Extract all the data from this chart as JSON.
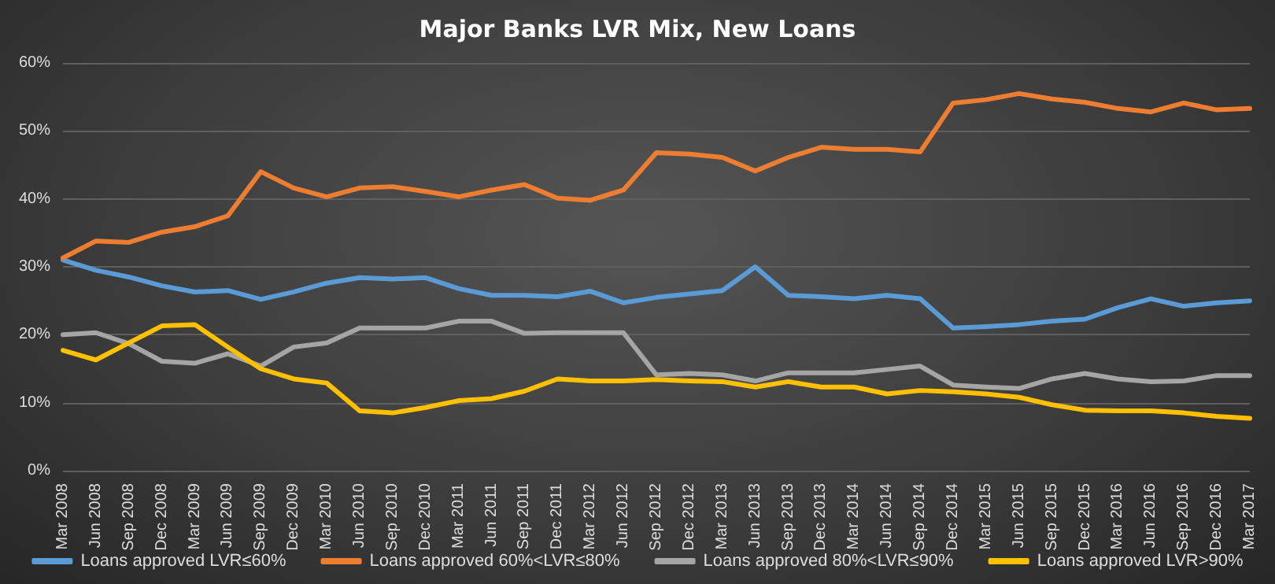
{
  "chart_data": {
    "type": "line",
    "title": "Major Banks LVR Mix, New Loans",
    "categories": [
      "Mar 2008",
      "Jun 2008",
      "Sep 2008",
      "Dec 2008",
      "Mar 2009",
      "Jun 2009",
      "Sep 2009",
      "Dec 2009",
      "Mar 2010",
      "Jun 2010",
      "Sep 2010",
      "Dec 2010",
      "Mar 2011",
      "Jun 2011",
      "Sep 2011",
      "Dec 2011",
      "Mar 2012",
      "Jun 2012",
      "Sep 2012",
      "Dec 2012",
      "Mar 2013",
      "Jun 2013",
      "Sep 2013",
      "Dec 2013",
      "Mar 2014",
      "Jun 2014",
      "Sep 2014",
      "Dec 2014",
      "Mar 2015",
      "Jun 2015",
      "Sep 2015",
      "Dec 2015",
      "Mar 2016",
      "Jun 2016",
      "Sep 2016",
      "Dec 2016",
      "Mar 2017"
    ],
    "series": [
      {
        "name": "Loans approved LVR≤60%",
        "color": "#5b9bd5",
        "values": [
          31,
          29.5,
          28.5,
          27.2,
          26.3,
          26.5,
          25.2,
          26.3,
          27.6,
          28.4,
          28.2,
          28.4,
          26.8,
          25.8,
          25.8,
          25.6,
          26.4,
          24.7,
          25.5,
          26,
          26.5,
          30,
          25.8,
          25.6,
          25.3,
          25.8,
          25.3,
          21,
          21.2,
          21.5,
          22,
          22.3,
          24,
          25.3,
          24.2,
          24.7,
          25
        ]
      },
      {
        "name": "Loans approved 60%<LVR≤80%",
        "color": "#ed7d31",
        "values": [
          31.3,
          33.8,
          33.6,
          35.1,
          35.9,
          37.5,
          44,
          41.6,
          40.3,
          41.6,
          41.8,
          41.1,
          40.3,
          41.3,
          42.1,
          40.1,
          39.8,
          41.3,
          46.8,
          46.6,
          46.1,
          44.1,
          46.1,
          47.6,
          47.3,
          47.3,
          46.9,
          54.1,
          54.6,
          55.5,
          54.7,
          54.2,
          53.3,
          52.8,
          54.1,
          53.1,
          53.3
        ]
      },
      {
        "name": "Loans approved 80%<LVR≤90%",
        "color": "#a5a5a5",
        "values": [
          20,
          20.3,
          18.7,
          16.1,
          15.8,
          17.2,
          15.4,
          18.2,
          18.8,
          21,
          21,
          21,
          22,
          22,
          20.2,
          20.3,
          20.3,
          20.3,
          14.1,
          14.3,
          14.1,
          13.2,
          14.4,
          14.4,
          14.4,
          14.9,
          15.4,
          12.6,
          12.3,
          12.1,
          13.5,
          14.3,
          13.5,
          13.1,
          13.2,
          14,
          14
        ]
      },
      {
        "name": "Loans approved LVR>90%",
        "color": "#ffc000",
        "values": [
          17.7,
          16.3,
          18.8,
          21.3,
          21.5,
          18.2,
          15,
          13.5,
          12.9,
          8.8,
          8.5,
          9.3,
          10.3,
          10.6,
          11.7,
          13.5,
          13.2,
          13.2,
          13.4,
          13.2,
          13.1,
          12.3,
          13.1,
          12.3,
          12.3,
          11.3,
          11.8,
          11.6,
          11.3,
          10.8,
          9.7,
          8.9,
          8.8,
          8.8,
          8.5,
          8,
          7.7
        ]
      }
    ],
    "ylim": [
      0,
      60
    ],
    "yticks": [
      {
        "value": 0,
        "label": "0%"
      },
      {
        "value": 10,
        "label": "10%"
      },
      {
        "value": 20,
        "label": "20%"
      },
      {
        "value": 30,
        "label": "30%"
      },
      {
        "value": 40,
        "label": "40%"
      },
      {
        "value": 50,
        "label": "50%"
      },
      {
        "value": 60,
        "label": "60%"
      }
    ],
    "grid": "y",
    "legend": "bottom",
    "marker": "none",
    "line_style": "solid"
  }
}
